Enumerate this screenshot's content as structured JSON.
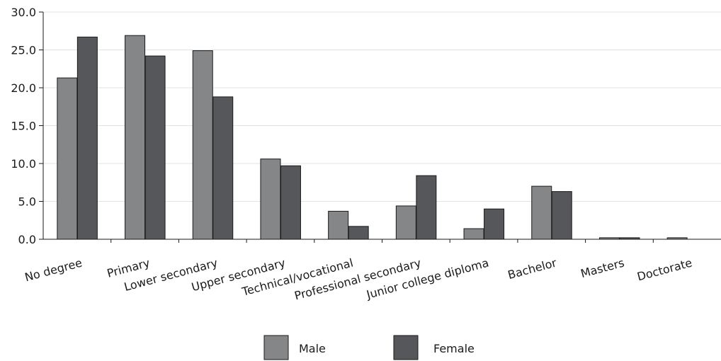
{
  "chart_data": {
    "type": "bar",
    "title": "",
    "xlabel": "",
    "ylabel": "",
    "ylim": [
      0,
      30
    ],
    "yticks": [
      "0.0",
      "5.0",
      "10.0",
      "15.0",
      "20.0",
      "25.0",
      "30.0"
    ],
    "grid": true,
    "legend_position": "bottom-center",
    "categories": [
      "No degree",
      "Primary",
      "Lower secondary",
      "Upper secondary",
      "Technical/vocational",
      "Professional secondary",
      "Junior college diploma",
      "Bachelor",
      "Masters",
      "Doctorate"
    ],
    "series": [
      {
        "name": "Male",
        "color": "#858688",
        "values": [
          21.3,
          26.9,
          24.9,
          10.6,
          3.7,
          4.4,
          1.4,
          7.0,
          0.2,
          0.2
        ]
      },
      {
        "name": "Female",
        "color": "#56575a",
        "values": [
          26.7,
          24.2,
          18.8,
          9.7,
          1.7,
          8.4,
          4.0,
          6.3,
          0.2,
          0.0
        ]
      }
    ]
  }
}
